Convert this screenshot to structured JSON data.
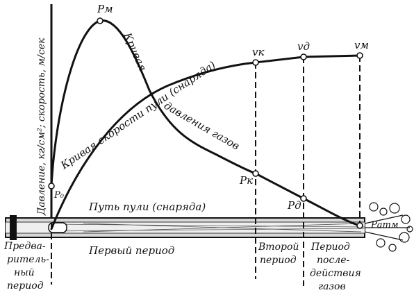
{
  "labels": {
    "y_axis": "Давление, кг/см²; скорость, м/сек",
    "velocity_curve": "Кривая скорости пули (снаряда)",
    "pressure_curve_1": "Кривая",
    "pressure_curve_2": "давления газов",
    "bullet_path": "Путь пули (снаряда)"
  },
  "points": {
    "p_m": "Pм",
    "v_k": "vк",
    "v_d": "vд",
    "v_m": "vм",
    "p_0": "P₀",
    "p_k": "Pк",
    "p_d": "Pд",
    "p_atm": "Pатм"
  },
  "periods": {
    "preliminary": [
      "Предва-",
      "ритель-",
      "ный",
      "период"
    ],
    "first": "Первый период",
    "second": [
      "Второй",
      "период"
    ],
    "after": [
      "Период",
      "после-",
      "действия",
      "газов"
    ]
  }
}
